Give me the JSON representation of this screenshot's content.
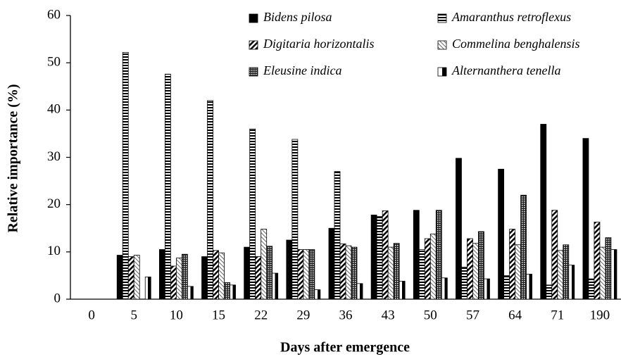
{
  "chart_data": {
    "type": "bar",
    "x_label": "Days after emergence",
    "y_label": "Relative importance (%)",
    "categories": [
      "0",
      "5",
      "10",
      "15",
      "22",
      "29",
      "36",
      "43",
      "50",
      "57",
      "64",
      "71",
      "190"
    ],
    "series": [
      {
        "name": "Bidens pilosa",
        "color": "#000000",
        "pattern": "solid",
        "values": [
          0,
          9.3,
          10.5,
          9,
          11,
          12.5,
          15,
          17.8,
          18.8,
          29.8,
          27.5,
          37,
          34
        ]
      },
      {
        "name": "Amaranthus retroflexus",
        "color": "#000000",
        "pattern": "hstripe",
        "values": [
          0,
          52.2,
          47.6,
          42,
          36,
          33.8,
          27,
          17.5,
          10.5,
          6.8,
          5,
          3,
          4.3
        ]
      },
      {
        "name": "Digitaria horizontalis",
        "color": "#000000",
        "pattern": "diag",
        "values": [
          0,
          9,
          7,
          10.3,
          9,
          10.5,
          11.7,
          18.7,
          12.8,
          12.8,
          14.8,
          18.8,
          16.3
        ]
      },
      {
        "name": "Commelina benghalensis",
        "color": "#000000",
        "pattern": "lightdiag",
        "values": [
          0,
          9.3,
          8.7,
          9.8,
          14.8,
          10.5,
          11.3,
          11,
          13.8,
          11.8,
          11.5,
          10.3,
          11
        ]
      },
      {
        "name": "Eleusine indica",
        "color": "#000000",
        "pattern": "check",
        "values": [
          0,
          0,
          9.5,
          3.5,
          11.2,
          10.5,
          11,
          11.8,
          18.8,
          14.3,
          22,
          11.5,
          13
        ]
      },
      {
        "name": "Alternanthera tenella",
        "color": "#000000",
        "pattern": "half",
        "values": [
          0,
          4.7,
          2.7,
          3,
          5.5,
          2,
          3.3,
          3.8,
          4.5,
          4.3,
          5.3,
          7.2,
          10.5
        ]
      }
    ],
    "ylim": [
      0,
      60
    ],
    "yticks": [
      0,
      10,
      20,
      30,
      40,
      50,
      60
    ],
    "legend": "top-right",
    "grid": false
  }
}
